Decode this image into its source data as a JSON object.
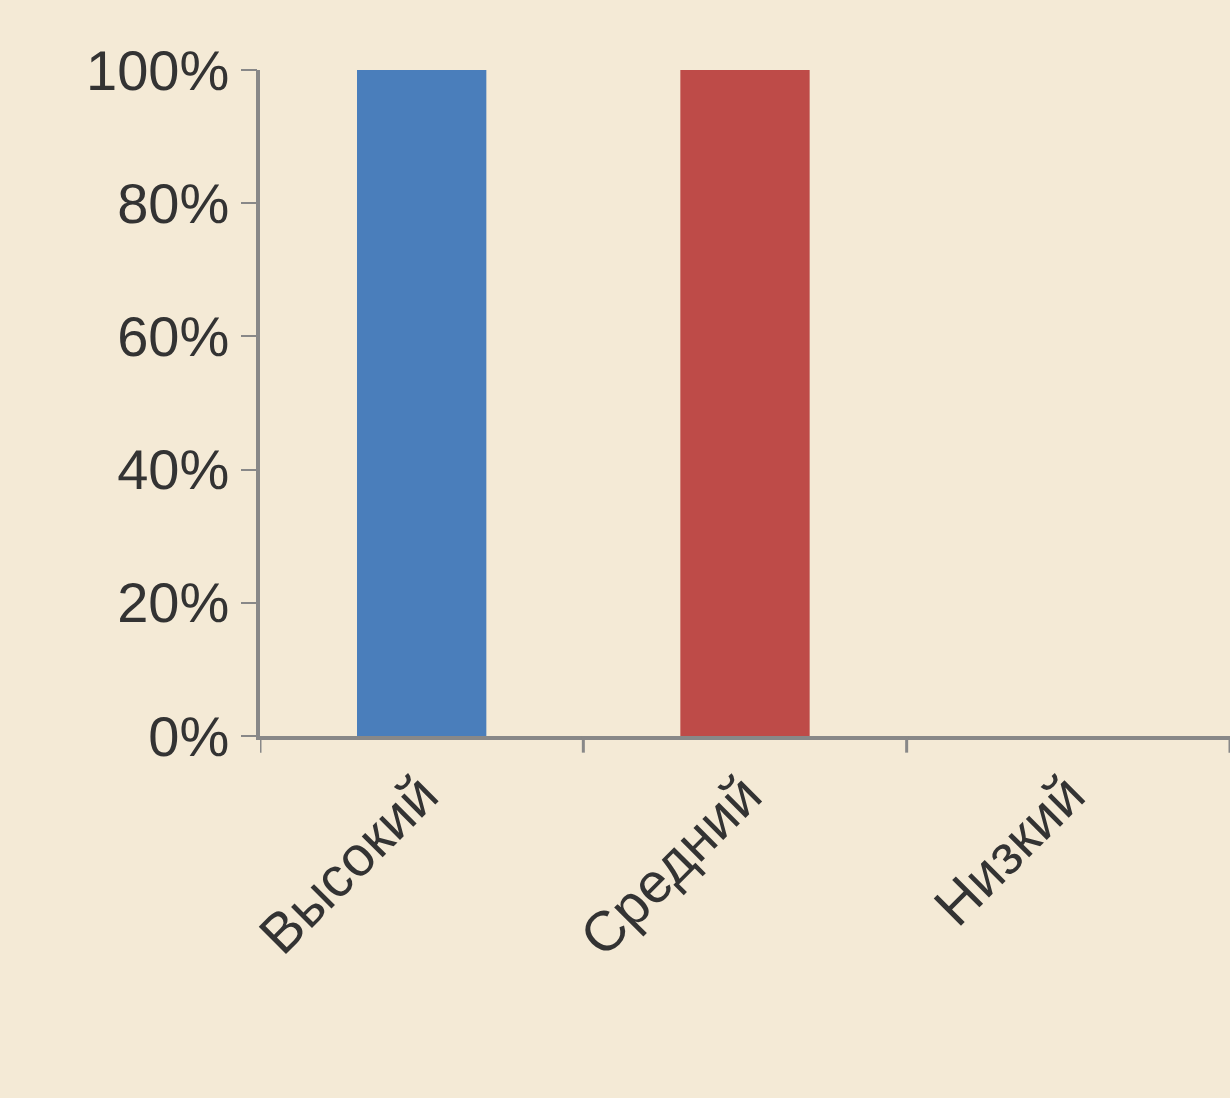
{
  "chart_data": {
    "type": "bar",
    "categories": [
      "Высокий",
      "Средний",
      "Низкий"
    ],
    "values": [
      100,
      100,
      0
    ],
    "colors": [
      "#4a7ebb",
      "#be4b48",
      "#98b954"
    ],
    "ylim": [
      0,
      100
    ],
    "yticks": [
      {
        "value": 0,
        "label": "0%"
      },
      {
        "value": 20,
        "label": "20%"
      },
      {
        "value": 40,
        "label": "40%"
      },
      {
        "value": 60,
        "label": "60%"
      },
      {
        "value": 80,
        "label": "80%"
      },
      {
        "value": 100,
        "label": "100%"
      }
    ]
  }
}
